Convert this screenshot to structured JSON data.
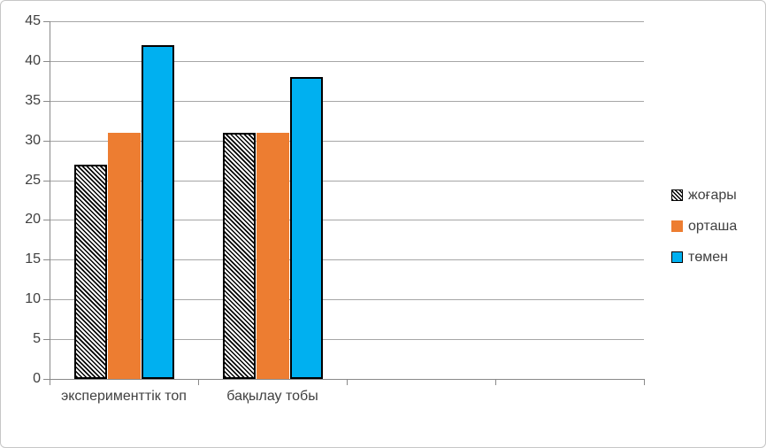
{
  "chart_data": {
    "type": "bar",
    "title": "",
    "categories": [
      "эксперименттік топ",
      "бақылау тобы"
    ],
    "series": [
      {
        "name": "жоғары",
        "values": [
          27,
          31
        ],
        "fill": "diagonal-hatch-black-white"
      },
      {
        "name": "орташа",
        "values": [
          31,
          31
        ],
        "fill": "solid",
        "color": "#ED7D31"
      },
      {
        "name": "төмен",
        "values": [
          42,
          38
        ],
        "fill": "solid",
        "color": "#00B0F0"
      }
    ],
    "ylim": [
      0,
      45
    ],
    "y_ticks": [
      0,
      5,
      10,
      15,
      20,
      25,
      30,
      35,
      40,
      45
    ],
    "xlabel": "",
    "ylabel": "",
    "grid": true,
    "legend_position": "right",
    "category_slots": 4,
    "colors": {
      "gridline": "#A6A6A6",
      "axis": "#898989",
      "text": "#404040",
      "frame_border": "#C6C6C6",
      "background": "#FFFFFF"
    }
  }
}
